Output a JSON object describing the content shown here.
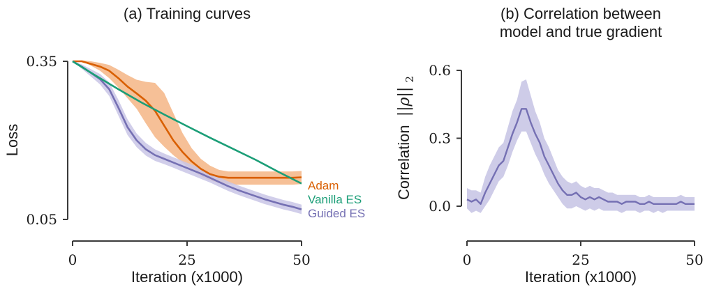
{
  "colors": {
    "adam": "#d95f02",
    "adam_band": "#f4b585",
    "vanilla": "#1b9e77",
    "guided": "#7570b3",
    "guided_band": "#c9c6e6"
  },
  "chart_data": [
    {
      "type": "line",
      "title": "(a) Training curves",
      "xlabel": "Iteration (x1000)",
      "ylabel": "Loss",
      "xlim": [
        0,
        50
      ],
      "ylim": [
        0.05,
        0.35
      ],
      "xticks": [
        "0",
        "25",
        "50"
      ],
      "yticks": [
        "0.05",
        "0.35"
      ],
      "legend_placement": "right, at line ends",
      "series": [
        {
          "name": "Adam",
          "color": "#d95f02",
          "band": true,
          "x": [
            0,
            2,
            4,
            6,
            8,
            10,
            12,
            14,
            16,
            18,
            20,
            22,
            24,
            26,
            28,
            30,
            32,
            34,
            36,
            38,
            40,
            42,
            44,
            46,
            48,
            50
          ],
          "y": [
            0.35,
            0.35,
            0.345,
            0.34,
            0.332,
            0.318,
            0.302,
            0.289,
            0.275,
            0.256,
            0.228,
            0.2,
            0.178,
            0.16,
            0.146,
            0.136,
            0.131,
            0.129,
            0.129,
            0.129,
            0.129,
            0.129,
            0.129,
            0.129,
            0.129,
            0.13
          ],
          "y_low": [
            0.35,
            0.35,
            0.342,
            0.332,
            0.318,
            0.3,
            0.28,
            0.26,
            0.232,
            0.206,
            0.188,
            0.172,
            0.158,
            0.144,
            0.132,
            0.124,
            0.119,
            0.117,
            0.116,
            0.116,
            0.116,
            0.116,
            0.116,
            0.116,
            0.116,
            0.117
          ],
          "y_high": [
            0.35,
            0.352,
            0.35,
            0.347,
            0.343,
            0.334,
            0.324,
            0.315,
            0.311,
            0.309,
            0.29,
            0.252,
            0.214,
            0.185,
            0.165,
            0.152,
            0.144,
            0.141,
            0.141,
            0.141,
            0.141,
            0.141,
            0.141,
            0.141,
            0.141,
            0.142
          ]
        },
        {
          "name": "Vanilla ES",
          "color": "#1b9e77",
          "band": false,
          "x": [
            0,
            5,
            10,
            15,
            20,
            25,
            30,
            35,
            40,
            45,
            50
          ],
          "y": [
            0.35,
            0.323,
            0.297,
            0.272,
            0.249,
            0.227,
            0.205,
            0.184,
            0.163,
            0.14,
            0.118
          ]
        },
        {
          "name": "Guided ES",
          "color": "#7570b3",
          "band": true,
          "x": [
            0,
            2,
            4,
            6,
            8,
            10,
            12,
            14,
            16,
            18,
            20,
            22,
            24,
            26,
            28,
            30,
            32,
            34,
            36,
            38,
            40,
            42,
            44,
            46,
            48,
            50
          ],
          "y": [
            0.35,
            0.34,
            0.328,
            0.316,
            0.297,
            0.262,
            0.225,
            0.2,
            0.183,
            0.172,
            0.165,
            0.158,
            0.151,
            0.144,
            0.137,
            0.129,
            0.121,
            0.113,
            0.106,
            0.1,
            0.094,
            0.088,
            0.083,
            0.078,
            0.074,
            0.069
          ],
          "y_low": [
            0.35,
            0.336,
            0.321,
            0.306,
            0.284,
            0.247,
            0.21,
            0.187,
            0.171,
            0.161,
            0.155,
            0.148,
            0.141,
            0.134,
            0.127,
            0.12,
            0.112,
            0.104,
            0.097,
            0.091,
            0.085,
            0.079,
            0.074,
            0.069,
            0.065,
            0.06
          ],
          "y_high": [
            0.35,
            0.344,
            0.335,
            0.326,
            0.31,
            0.277,
            0.24,
            0.213,
            0.195,
            0.183,
            0.175,
            0.168,
            0.161,
            0.154,
            0.147,
            0.138,
            0.13,
            0.122,
            0.115,
            0.109,
            0.103,
            0.097,
            0.092,
            0.087,
            0.083,
            0.078
          ]
        }
      ]
    },
    {
      "type": "line",
      "title": "(b) Correlation between model and true gradient",
      "title_lines": [
        "(b) Correlation between",
        "model and true gradient"
      ],
      "xlabel": "Iteration (x1000)",
      "ylabel_text": "Correlation",
      "ylabel_math": "||ρ||",
      "ylabel_sub": "2",
      "xlim": [
        0,
        50
      ],
      "ylim": [
        0.0,
        0.6
      ],
      "xticks": [
        "0",
        "25",
        "50"
      ],
      "yticks": [
        "0.0",
        "0.3",
        "0.6"
      ],
      "series": [
        {
          "color": "#7570b3",
          "band": true,
          "x": [
            0,
            1,
            2,
            3,
            4,
            5,
            6,
            7,
            8,
            9,
            10,
            11,
            12,
            13,
            14,
            15,
            16,
            17,
            18,
            19,
            20,
            21,
            22,
            23,
            24,
            25,
            26,
            27,
            28,
            29,
            30,
            31,
            32,
            33,
            34,
            35,
            36,
            37,
            38,
            39,
            40,
            41,
            42,
            43,
            44,
            45,
            46,
            47,
            48,
            49,
            50
          ],
          "y": [
            0.03,
            0.02,
            0.03,
            0.01,
            0.06,
            0.1,
            0.14,
            0.18,
            0.2,
            0.26,
            0.32,
            0.37,
            0.43,
            0.43,
            0.37,
            0.32,
            0.28,
            0.22,
            0.18,
            0.14,
            0.1,
            0.07,
            0.05,
            0.05,
            0.06,
            0.04,
            0.03,
            0.04,
            0.03,
            0.04,
            0.03,
            0.02,
            0.02,
            0.02,
            0.01,
            0.02,
            0.02,
            0.02,
            0.01,
            0.01,
            0.02,
            0.01,
            0.01,
            0.01,
            0.01,
            0.01,
            0.01,
            0.02,
            0.01,
            0.01,
            0.01
          ],
          "y_low": [
            -0.01,
            -0.03,
            -0.02,
            -0.03,
            0.0,
            0.03,
            0.07,
            0.11,
            0.13,
            0.18,
            0.24,
            0.29,
            0.33,
            0.33,
            0.28,
            0.23,
            0.19,
            0.14,
            0.1,
            0.07,
            0.04,
            0.01,
            -0.01,
            -0.01,
            0.0,
            -0.01,
            -0.02,
            -0.01,
            -0.02,
            -0.01,
            -0.02,
            -0.02,
            -0.02,
            -0.02,
            -0.03,
            -0.02,
            -0.02,
            -0.02,
            -0.03,
            -0.02,
            -0.02,
            -0.03,
            -0.02,
            -0.03,
            -0.02,
            -0.02,
            -0.02,
            -0.02,
            -0.02,
            -0.02,
            -0.02
          ],
          "y_high": [
            0.08,
            0.07,
            0.07,
            0.06,
            0.13,
            0.18,
            0.22,
            0.26,
            0.28,
            0.35,
            0.42,
            0.47,
            0.55,
            0.56,
            0.49,
            0.42,
            0.37,
            0.3,
            0.26,
            0.21,
            0.16,
            0.13,
            0.11,
            0.1,
            0.11,
            0.09,
            0.08,
            0.09,
            0.08,
            0.08,
            0.07,
            0.06,
            0.06,
            0.05,
            0.05,
            0.05,
            0.05,
            0.05,
            0.04,
            0.04,
            0.05,
            0.04,
            0.04,
            0.04,
            0.04,
            0.04,
            0.04,
            0.05,
            0.04,
            0.04,
            0.04
          ]
        }
      ]
    }
  ]
}
